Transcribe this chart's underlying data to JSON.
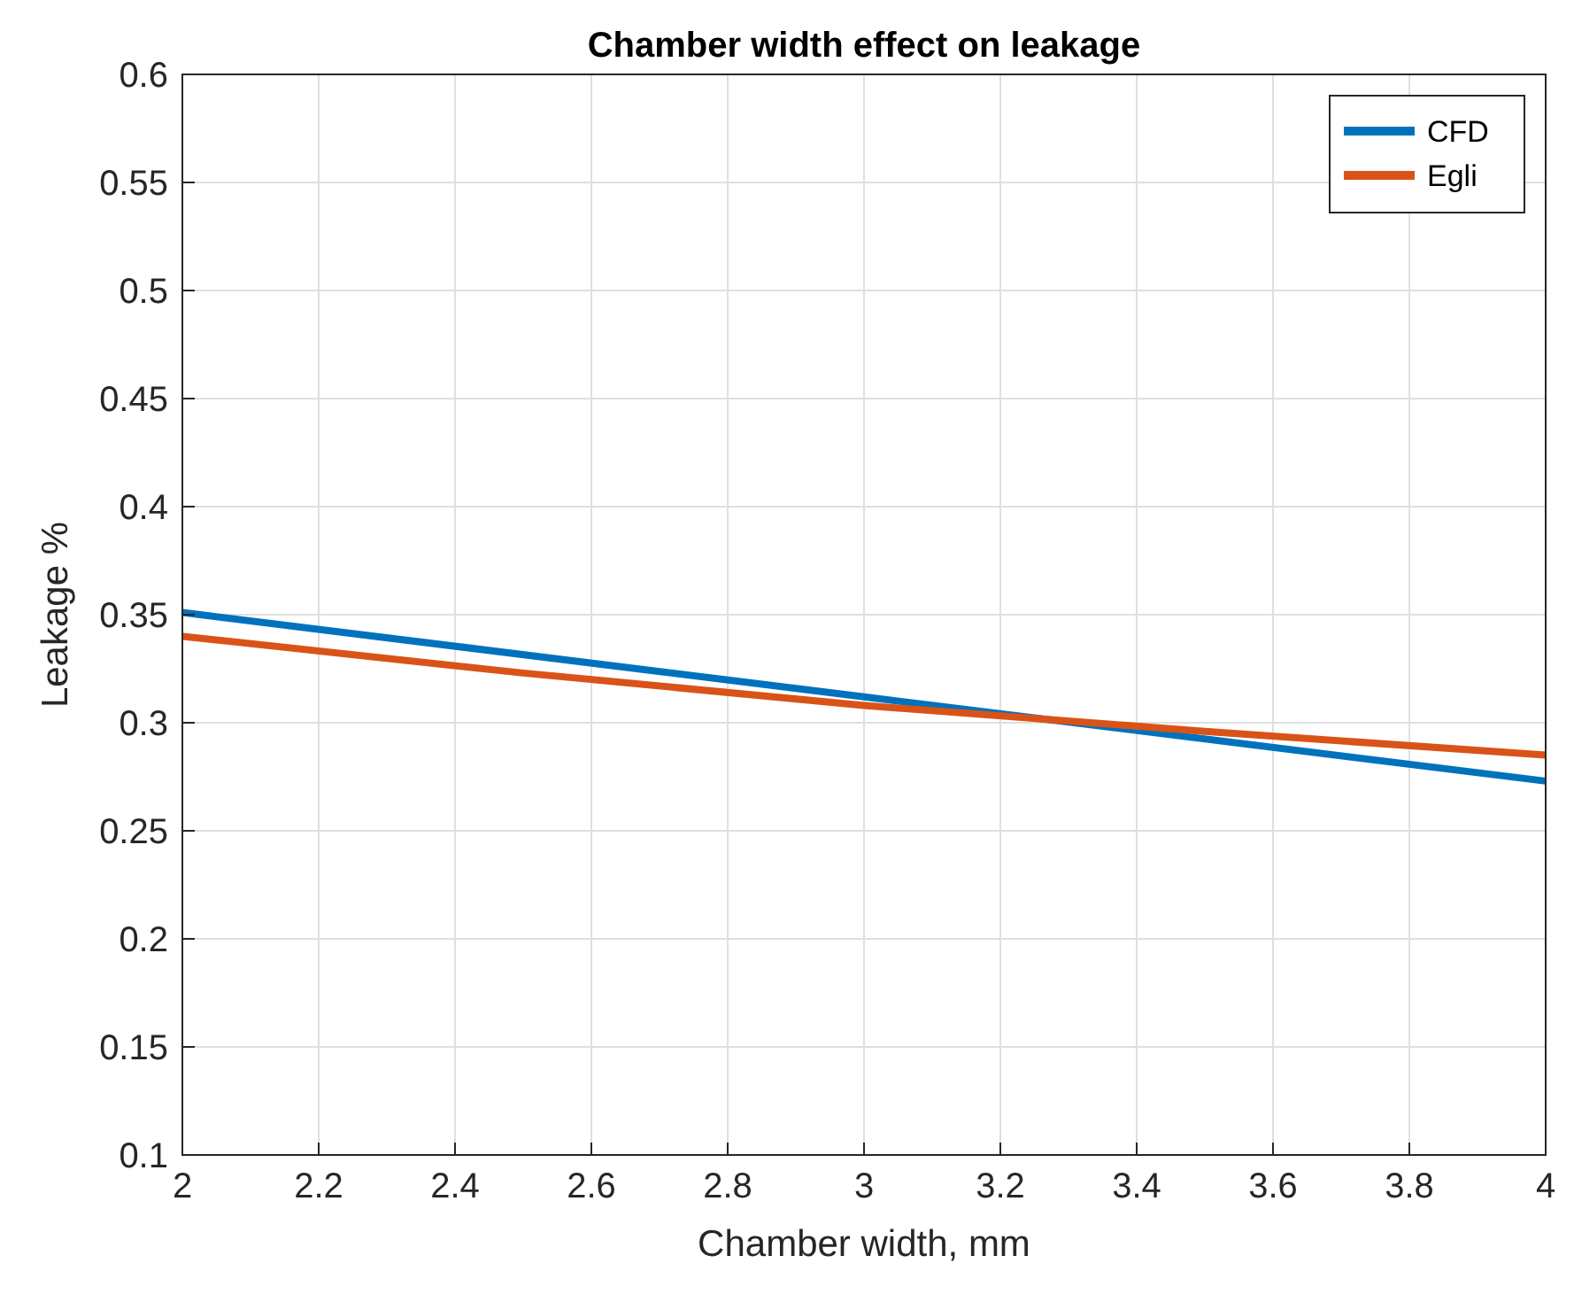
{
  "chart_data": {
    "type": "line",
    "title": "Chamber width effect on leakage",
    "xlabel": "Chamber width, mm",
    "ylabel": "Leakage %",
    "xlim": [
      2,
      4
    ],
    "xticks": [
      2,
      2.2,
      2.4,
      2.6,
      2.8,
      3,
      3.2,
      3.4,
      3.6,
      3.8,
      4
    ],
    "ylim": [
      0.1,
      0.6
    ],
    "yticks": [
      0.1,
      0.15,
      0.2,
      0.25,
      0.3,
      0.35,
      0.4,
      0.45,
      0.5,
      0.55,
      0.6
    ],
    "grid": true,
    "legend": "top right",
    "marker": "none",
    "line_style": "solid",
    "series": [
      {
        "name": "CFD",
        "color": "#0072bd",
        "x": [
          2,
          3,
          4
        ],
        "values": [
          0.351,
          0.312,
          0.273
        ]
      },
      {
        "name": "Egli",
        "color": "#d95319",
        "x": [
          2,
          2.5,
          3,
          3.5,
          4
        ],
        "values": [
          0.34,
          0.323,
          0.308,
          0.296,
          0.285
        ]
      }
    ]
  }
}
